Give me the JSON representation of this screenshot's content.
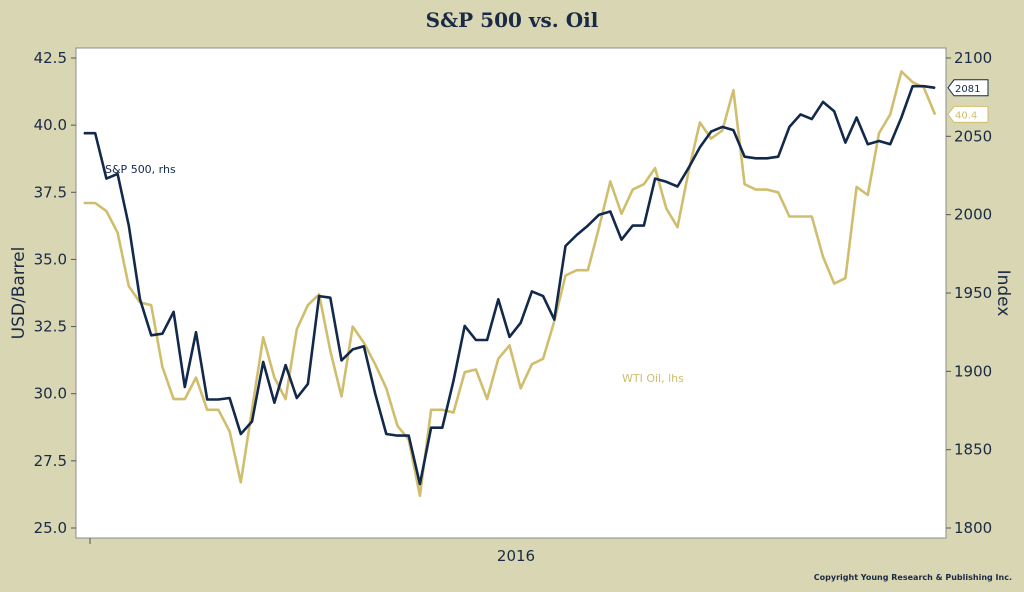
{
  "chart_data": {
    "type": "line",
    "title": "S&P 500 vs. Oil",
    "xlabel": "",
    "x_tick_labels": [
      "2016"
    ],
    "ylabel_left": "USD/Barrel",
    "ylabel_right": "Index",
    "ylim_left": [
      25.0,
      42.5
    ],
    "ylim_right": [
      1800,
      2100
    ],
    "yticks_left": [
      "25.0",
      "27.5",
      "30.0",
      "32.5",
      "35.0",
      "37.5",
      "40.0",
      "42.5"
    ],
    "yticks_right": [
      "1800",
      "1850",
      "1900",
      "1950",
      "2000",
      "2050",
      "2100"
    ],
    "grid": false,
    "series": [
      {
        "name": "S&P 500, rhs",
        "axis": "right",
        "color": "#13294b",
        "end_label": "2081",
        "values": [
          2052,
          2052,
          2023,
          2026,
          1993,
          1946,
          1923,
          1924,
          1938,
          1890,
          1925,
          1882,
          1882,
          1883,
          1860,
          1868,
          1906,
          1880,
          1904,
          1883,
          1892,
          1948,
          1947,
          1907,
          1914,
          1916,
          1886,
          1860,
          1859,
          1859,
          1828,
          1864,
          1864,
          1894,
          1929,
          1920,
          1920,
          1946,
          1922,
          1931,
          1951,
          1948,
          1933,
          1980,
          1987,
          1993,
          2000,
          2002,
          1984,
          1993,
          1993,
          2023,
          2021,
          2018,
          2030,
          2043,
          2053,
          2056,
          2054,
          2037,
          2036,
          2036,
          2037,
          2056,
          2064,
          2061,
          2072,
          2066,
          2046,
          2062,
          2045,
          2047,
          2045,
          2062,
          2082,
          2082,
          2081
        ]
      },
      {
        "name": "WTI Oil, lhs",
        "axis": "left",
        "color": "#d0be6e",
        "end_label": "40.4",
        "values": [
          37.1,
          37.1,
          36.8,
          36.0,
          34.0,
          33.4,
          33.3,
          31.0,
          29.8,
          29.8,
          30.6,
          29.4,
          29.4,
          28.6,
          26.7,
          29.4,
          32.1,
          30.6,
          29.8,
          32.4,
          33.3,
          33.7,
          31.6,
          29.9,
          32.5,
          31.9,
          31.1,
          30.2,
          28.8,
          28.3,
          26.2,
          29.4,
          29.4,
          29.3,
          30.8,
          30.9,
          29.8,
          31.3,
          31.8,
          30.2,
          31.1,
          31.3,
          32.7,
          34.4,
          34.6,
          34.6,
          36.2,
          37.9,
          36.7,
          37.6,
          37.8,
          38.4,
          36.9,
          36.2,
          38.3,
          40.1,
          39.5,
          39.8,
          41.3,
          37.8,
          37.6,
          37.6,
          37.5,
          36.6,
          36.6,
          36.6,
          35.1,
          34.1,
          34.3,
          37.7,
          37.4,
          39.7,
          40.4,
          42.0,
          41.6,
          41.4,
          40.4
        ]
      }
    ],
    "annotations": [
      "S&P 500, rhs",
      "WTI Oil, lhs"
    ]
  },
  "footer": {
    "copyright": "Copyright Young Research & Publishing Inc."
  }
}
